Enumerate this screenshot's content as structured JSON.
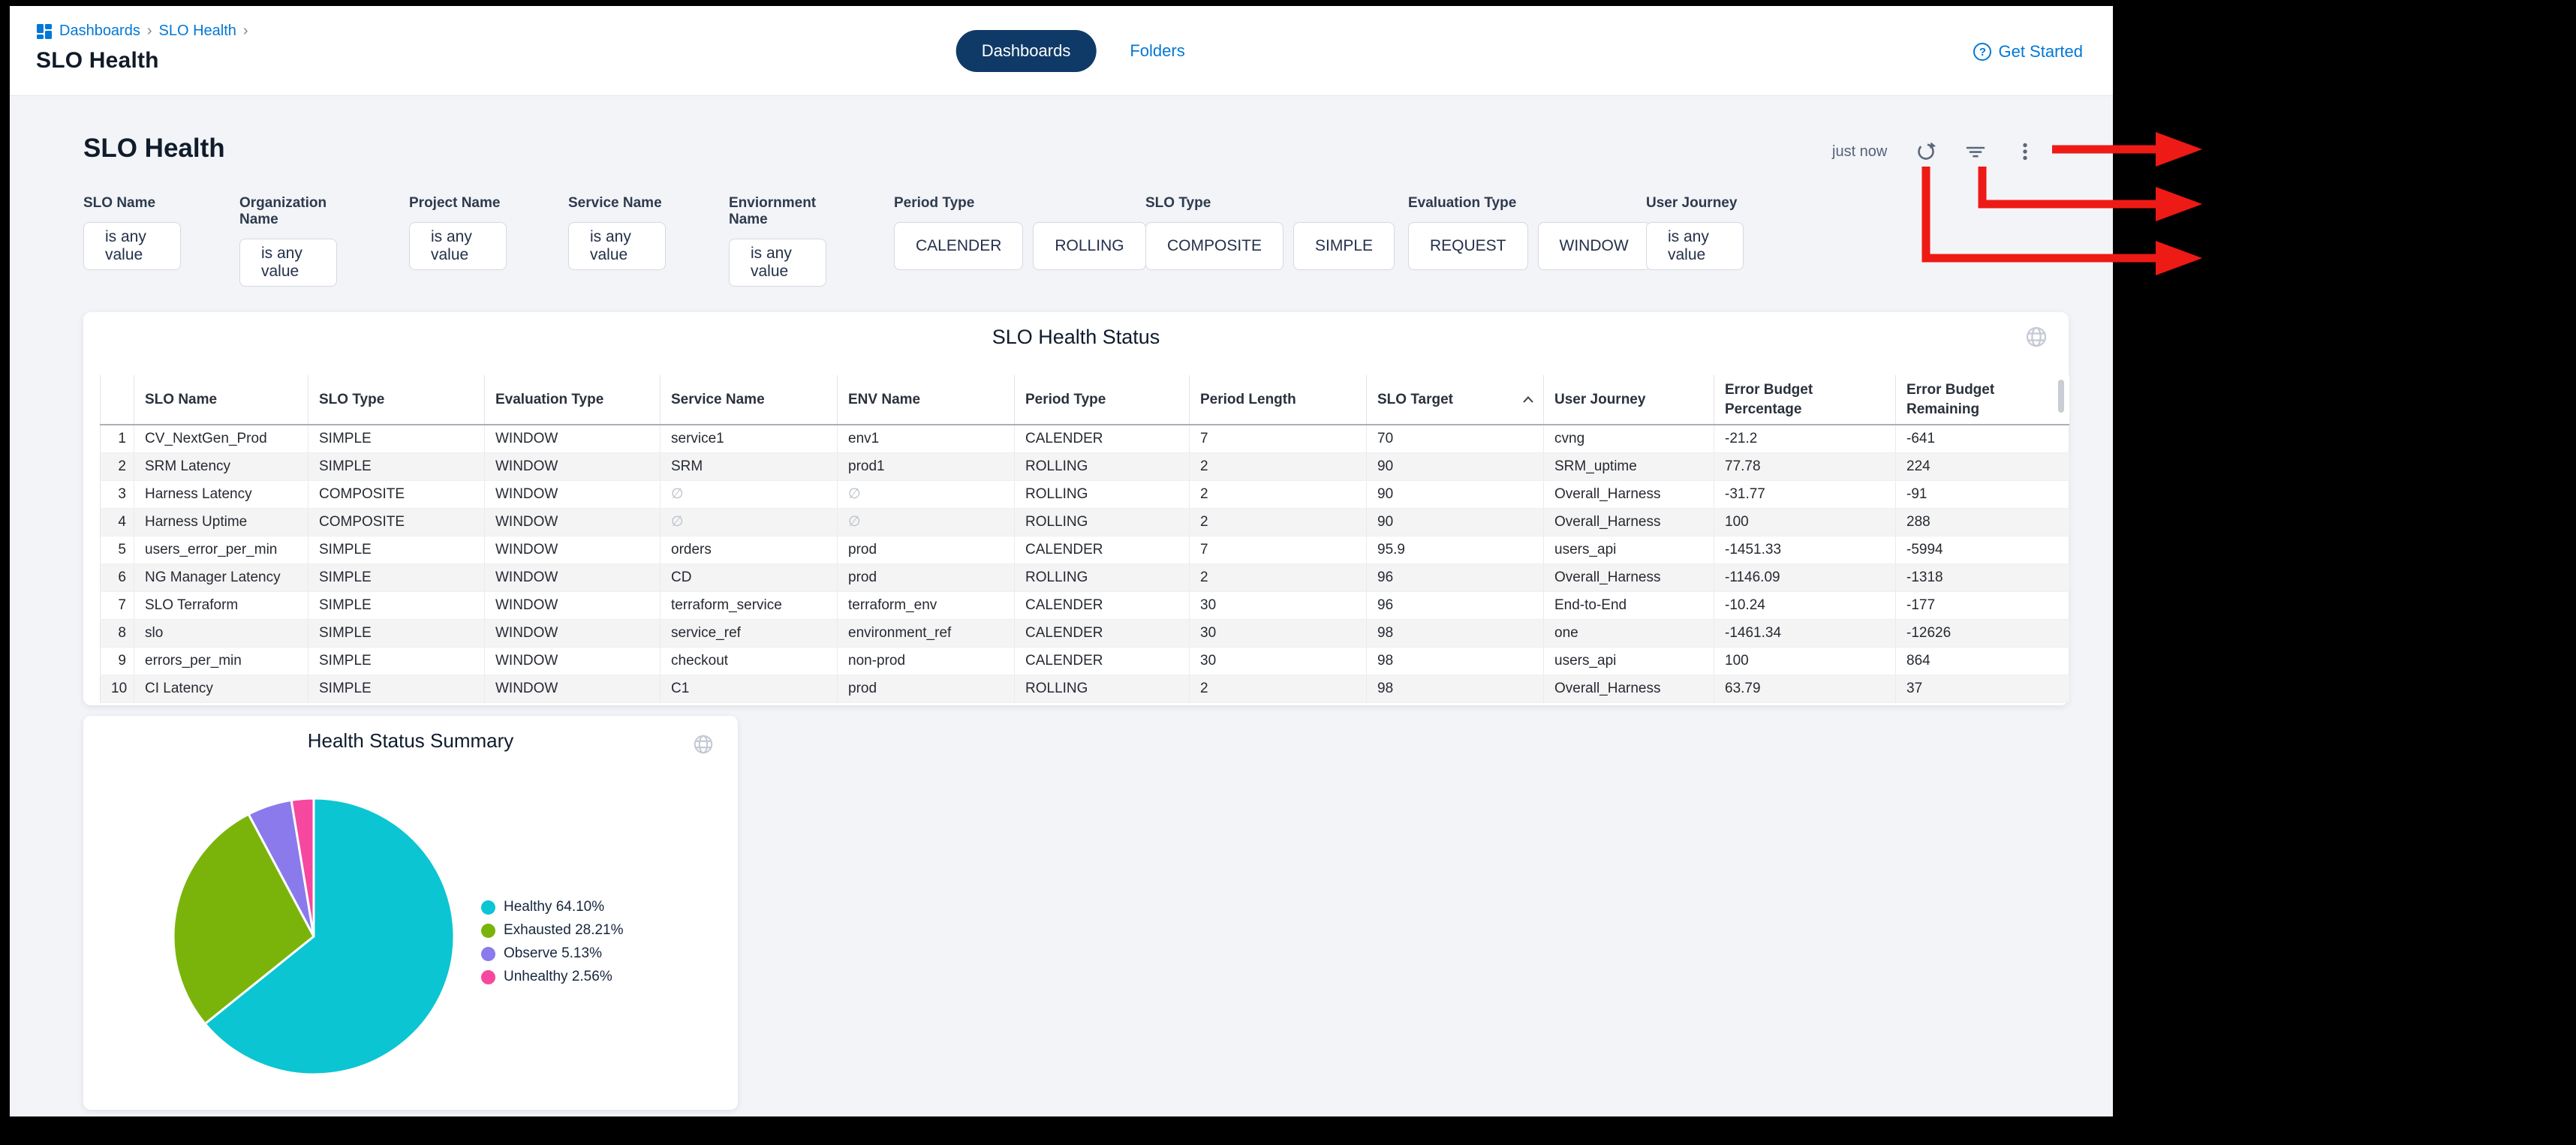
{
  "topbar": {
    "breadcrumb": {
      "items": [
        "Dashboards",
        "SLO Health"
      ],
      "separator": "›"
    },
    "window_title": "SLO Health",
    "tabs": [
      {
        "label": "Dashboards",
        "active": true
      },
      {
        "label": "Folders",
        "active": false
      }
    ],
    "get_started_label": "Get Started",
    "help_glyph": "?"
  },
  "page": {
    "heading": "SLO Health",
    "last_refresh": "just now"
  },
  "filters": [
    {
      "label": "SLO Name",
      "buttons": [
        "is any value"
      ]
    },
    {
      "label": "Organization Name",
      "buttons": [
        "is any value"
      ]
    },
    {
      "label": "Project Name",
      "buttons": [
        "is any value"
      ]
    },
    {
      "label": "Service Name",
      "buttons": [
        "is any value"
      ]
    },
    {
      "label": "Enviornment Name",
      "buttons": [
        "is any value"
      ]
    },
    {
      "label": "Period Type",
      "buttons": [
        "CALENDER",
        "ROLLING"
      ]
    },
    {
      "label": "SLO Type",
      "buttons": [
        "COMPOSITE",
        "SIMPLE"
      ]
    },
    {
      "label": "Evaluation Type",
      "buttons": [
        "REQUEST",
        "WINDOW"
      ]
    },
    {
      "label": "User Journey",
      "buttons": [
        "is any value"
      ]
    }
  ],
  "table": {
    "title": "SLO Health Status",
    "columns": [
      "SLO Name",
      "SLO Type",
      "Evaluation Type",
      "Service Name",
      "ENV Name",
      "Period Type",
      "Period Length",
      "SLO Target",
      "User Journey",
      "Error Budget\nPercentage",
      "Error Budget\nRemaining"
    ],
    "sort_column": "SLO Target",
    "null_symbol": "∅",
    "rows": [
      [
        "1",
        "CV_NextGen_Prod",
        "SIMPLE",
        "WINDOW",
        "service1",
        "env1",
        "CALENDER",
        "7",
        "70",
        "cvng",
        "-21.2",
        "-641"
      ],
      [
        "2",
        "SRM Latency",
        "SIMPLE",
        "WINDOW",
        "SRM",
        "prod1",
        "ROLLING",
        "2",
        "90",
        "SRM_uptime",
        "77.78",
        "224"
      ],
      [
        "3",
        "Harness Latency",
        "COMPOSITE",
        "WINDOW",
        "∅",
        "∅",
        "ROLLING",
        "2",
        "90",
        "Overall_Harness",
        "-31.77",
        "-91"
      ],
      [
        "4",
        "Harness Uptime",
        "COMPOSITE",
        "WINDOW",
        "∅",
        "∅",
        "ROLLING",
        "2",
        "90",
        "Overall_Harness",
        "100",
        "288"
      ],
      [
        "5",
        "users_error_per_min",
        "SIMPLE",
        "WINDOW",
        "orders",
        "prod",
        "CALENDER",
        "7",
        "95.9",
        "users_api",
        "-1451.33",
        "-5994"
      ],
      [
        "6",
        "NG Manager Latency",
        "SIMPLE",
        "WINDOW",
        "CD",
        "prod",
        "ROLLING",
        "2",
        "96",
        "Overall_Harness",
        "-1146.09",
        "-1318"
      ],
      [
        "7",
        "SLO Terraform",
        "SIMPLE",
        "WINDOW",
        "terraform_service",
        "terraform_env",
        "CALENDER",
        "30",
        "96",
        "End-to-End",
        "-10.24",
        "-177"
      ],
      [
        "8",
        "slo",
        "SIMPLE",
        "WINDOW",
        "service_ref",
        "environment_ref",
        "CALENDER",
        "30",
        "98",
        "one",
        "-1461.34",
        "-12626"
      ],
      [
        "9",
        "errors_per_min",
        "SIMPLE",
        "WINDOW",
        "checkout",
        "non-prod",
        "CALENDER",
        "30",
        "98",
        "users_api",
        "100",
        "864"
      ],
      [
        "10",
        "CI Latency",
        "SIMPLE",
        "WINDOW",
        "C1",
        "prod",
        "ROLLING",
        "2",
        "98",
        "Overall_Harness",
        "63.79",
        "37"
      ]
    ]
  },
  "chart_data": {
    "type": "pie",
    "title": "Health Status Summary",
    "labels": [
      "Healthy",
      "Exhausted",
      "Observe",
      "Unhealthy"
    ],
    "values": [
      64.1,
      28.21,
      5.13,
      2.56
    ],
    "colors": [
      "#0bc5d2",
      "#7ab40a",
      "#8b7aec",
      "#f5489e"
    ],
    "legend_position": "right",
    "start_angle_deg": 0,
    "direction": "clockwise"
  },
  "colors": {
    "accent_blue": "#0278d5",
    "tab_navy": "#0f3a68",
    "annotation_red": "#ee1a15"
  }
}
